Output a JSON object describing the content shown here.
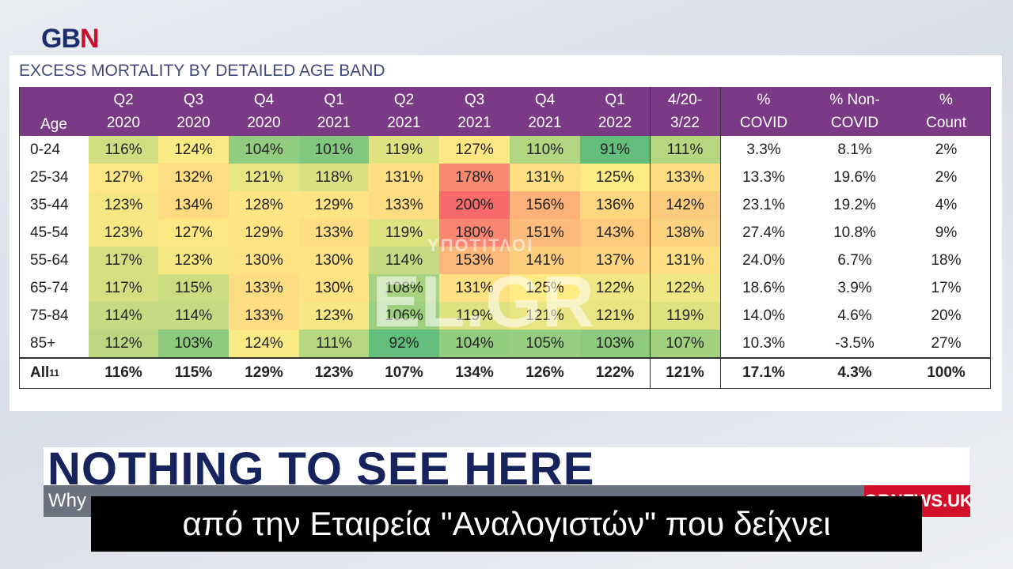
{
  "logo": {
    "left": "GB",
    "right": "N"
  },
  "table": {
    "title": "EXCESS MORTALITY BY DETAILED AGE BAND",
    "header": [
      [
        "Age"
      ],
      [
        "Q2",
        "2020"
      ],
      [
        "Q3",
        "2020"
      ],
      [
        "Q4",
        "2020"
      ],
      [
        "Q1",
        "2021"
      ],
      [
        "Q2",
        "2021"
      ],
      [
        "Q3",
        "2021"
      ],
      [
        "Q4",
        "2021"
      ],
      [
        "Q1",
        "2022"
      ],
      [
        "4/20-",
        "3/22"
      ],
      [
        "%",
        "COVID"
      ],
      [
        "% Non-",
        "COVID"
      ],
      [
        "%",
        "Count"
      ]
    ],
    "rows": [
      [
        "0-24",
        "116%",
        "124%",
        "104%",
        "101%",
        "119%",
        "127%",
        "110%",
        "91%",
        "111%",
        "3.3%",
        "8.1%",
        "2%"
      ],
      [
        "25-34",
        "127%",
        "132%",
        "121%",
        "118%",
        "131%",
        "178%",
        "131%",
        "125%",
        "133%",
        "13.3%",
        "19.6%",
        "2%"
      ],
      [
        "35-44",
        "123%",
        "134%",
        "128%",
        "129%",
        "133%",
        "200%",
        "156%",
        "136%",
        "142%",
        "23.1%",
        "19.2%",
        "4%"
      ],
      [
        "45-54",
        "123%",
        "127%",
        "129%",
        "133%",
        "119%",
        "180%",
        "151%",
        "143%",
        "138%",
        "27.4%",
        "10.8%",
        "9%"
      ],
      [
        "55-64",
        "117%",
        "123%",
        "130%",
        "130%",
        "114%",
        "153%",
        "141%",
        "137%",
        "131%",
        "24.0%",
        "6.7%",
        "18%"
      ],
      [
        "65-74",
        "117%",
        "115%",
        "133%",
        "130%",
        "108%",
        "131%",
        "125%",
        "122%",
        "122%",
        "18.6%",
        "3.9%",
        "17%"
      ],
      [
        "75-84",
        "114%",
        "114%",
        "133%",
        "123%",
        "106%",
        "119%",
        "121%",
        "121%",
        "119%",
        "14.0%",
        "4.6%",
        "20%"
      ],
      [
        "85+",
        "112%",
        "103%",
        "124%",
        "111%",
        "92%",
        "104%",
        "105%",
        "103%",
        "107%",
        "10.3%",
        "-3.5%",
        "27%"
      ]
    ],
    "total": {
      "label": "All",
      "note": "11",
      "cells": [
        "116%",
        "115%",
        "129%",
        "123%",
        "107%",
        "134%",
        "126%",
        "122%",
        "121%",
        "17.1%",
        "4.3%",
        "100%"
      ]
    }
  },
  "watermark": {
    "top": "ΥΠΟΤΙΤΛΟΙ",
    "main": "EL.GR"
  },
  "banner": {
    "headline": "NOTHING TO SEE HERE",
    "ticker": "Why",
    "site": "GBNEWS.UK"
  },
  "subtitle": "από την Εταιρεία \"Αναλογιστών\" που δείχνει"
}
